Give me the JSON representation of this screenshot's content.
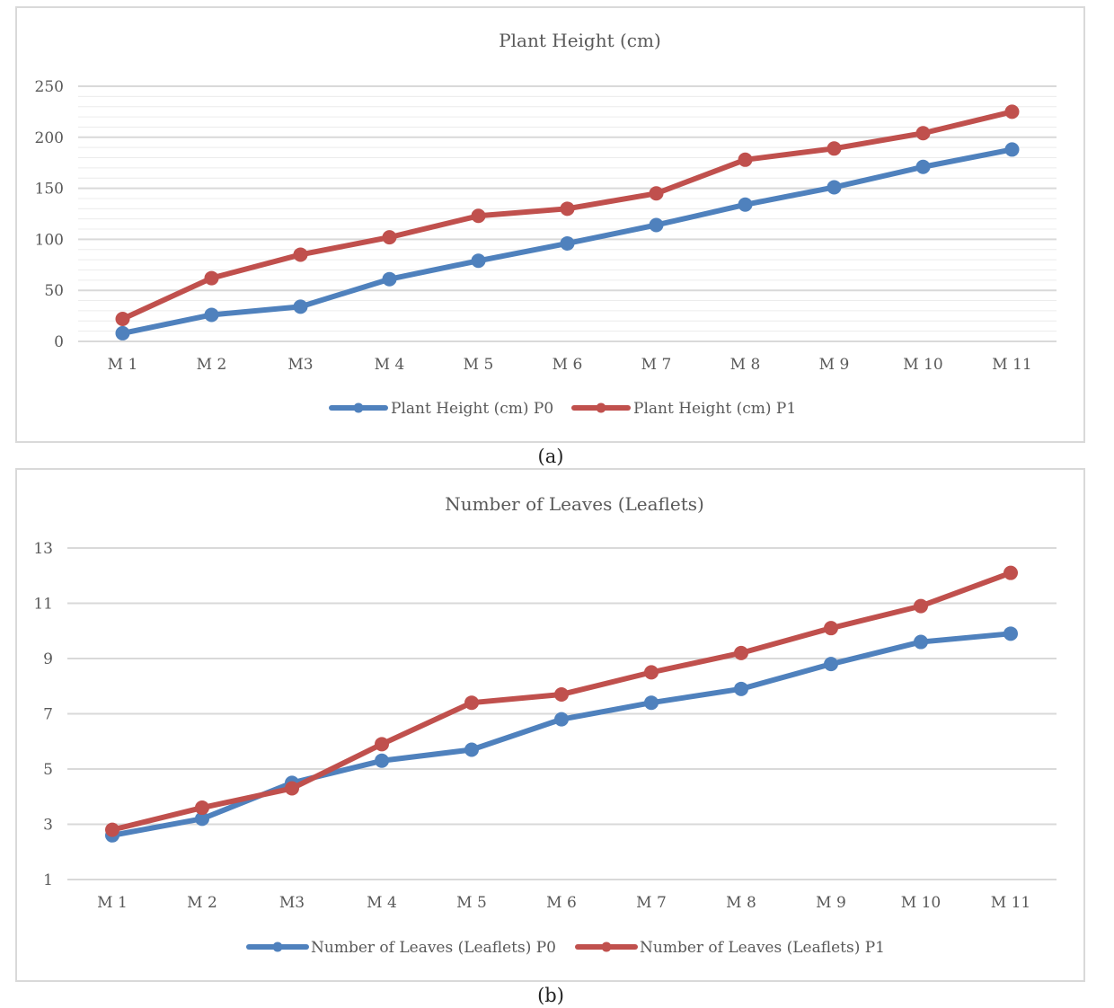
{
  "chart_data": [
    {
      "type": "line",
      "title": "Plant Height (cm)",
      "caption": "(a)",
      "categories": [
        "M 1",
        "M 2",
        "M3",
        "M 4",
        "M 5",
        "M 6",
        "M 7",
        "M 8",
        "M 9",
        "M 10",
        "M 11"
      ],
      "ylim": [
        0,
        250
      ],
      "yticks": [
        "0",
        "50",
        "100",
        "150",
        "200",
        "250"
      ],
      "grid": true,
      "legend_position": "bottom",
      "series": [
        {
          "name": "Plant Height (cm) P0",
          "color": "#4f81bd",
          "values": [
            8,
            26,
            34,
            61,
            79,
            96,
            114,
            134,
            151,
            171,
            188
          ]
        },
        {
          "name": "Plant Height (cm) P1",
          "color": "#c0504d",
          "values": [
            22,
            62,
            85,
            102,
            123,
            130,
            145,
            178,
            189,
            204,
            225
          ]
        }
      ]
    },
    {
      "type": "line",
      "title": "Number of Leaves (Leaflets)",
      "caption": "(b)",
      "categories": [
        "M 1",
        "M 2",
        "M3",
        "M 4",
        "M 5",
        "M 6",
        "M 7",
        "M 8",
        "M 9",
        "M 10",
        "M 11"
      ],
      "ylim": [
        1,
        13
      ],
      "yticks": [
        "1",
        "3",
        "5",
        "7",
        "9",
        "11",
        "13"
      ],
      "grid": true,
      "legend_position": "bottom",
      "series": [
        {
          "name": "Number of Leaves (Leaflets) P0",
          "color": "#4f81bd",
          "values": [
            2.6,
            3.2,
            4.5,
            5.3,
            5.7,
            6.8,
            7.4,
            7.9,
            8.8,
            9.6,
            9.9
          ]
        },
        {
          "name": "Number of Leaves (Leaflets) P1",
          "color": "#c0504d",
          "values": [
            2.8,
            3.6,
            4.3,
            5.9,
            7.4,
            7.7,
            8.5,
            9.2,
            10.1,
            10.9,
            12.1
          ]
        }
      ]
    }
  ]
}
